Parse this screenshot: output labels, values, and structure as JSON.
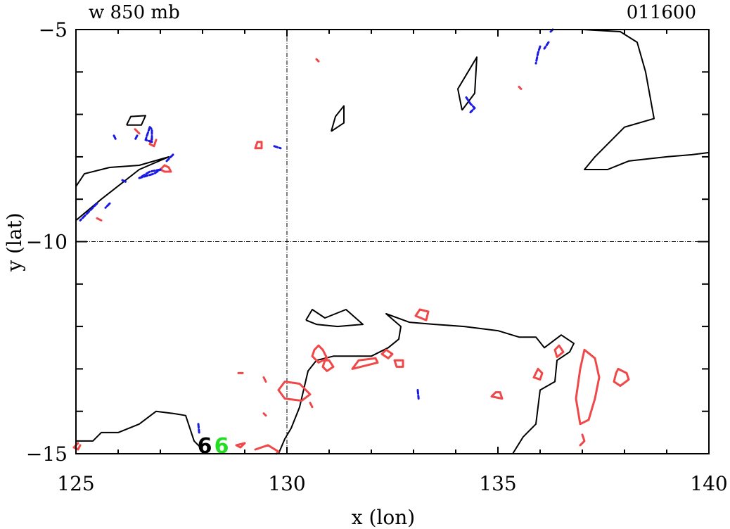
{
  "chart_data": {
    "type": "contour",
    "title_left": "w 850 mb",
    "title_right": "011600",
    "xlabel": "x (lon)",
    "ylabel": "y (lat)",
    "xlim": [
      125,
      140
    ],
    "ylim": [
      -15,
      -5
    ],
    "x_ticks": [
      125,
      130,
      135,
      140
    ],
    "x_tick_labels": [
      "125",
      "130",
      "135",
      "140"
    ],
    "y_ticks": [
      -15,
      -10,
      -5
    ],
    "y_tick_labels": [
      "−15",
      "−10",
      "−5"
    ],
    "grid": {
      "x": [
        130
      ],
      "y": [
        -10
      ],
      "style": "dash-dot"
    },
    "colors": {
      "coast": "#000000",
      "positive": "#f04848",
      "negative": "#1a1ae6",
      "marker": "#22dd22"
    },
    "coastlines": [
      [
        [
          135.8,
          -5.0
        ],
        [
          136.5,
          -5.0
        ],
        [
          137.0,
          -5.0
        ],
        [
          137.9,
          -5.05
        ],
        [
          138.3,
          -5.3
        ],
        [
          138.5,
          -6.0
        ],
        [
          138.7,
          -7.1
        ],
        [
          138.0,
          -7.3
        ],
        [
          137.3,
          -8.0
        ],
        [
          137.05,
          -8.3
        ],
        [
          137.6,
          -8.3
        ],
        [
          138.1,
          -8.1
        ],
        [
          139.0,
          -8.0
        ],
        [
          139.6,
          -7.95
        ],
        [
          140.0,
          -7.9
        ]
      ],
      [
        [
          134.15,
          -6.9
        ],
        [
          134.05,
          -6.4
        ],
        [
          134.35,
          -5.9
        ],
        [
          134.5,
          -5.65
        ],
        [
          134.45,
          -6.5
        ],
        [
          134.15,
          -6.9
        ]
      ],
      [
        [
          131.05,
          -7.4
        ],
        [
          131.15,
          -7.05
        ],
        [
          131.35,
          -6.8
        ],
        [
          131.35,
          -7.2
        ],
        [
          131.05,
          -7.4
        ]
      ],
      [
        [
          126.2,
          -7.25
        ],
        [
          126.3,
          -7.05
        ],
        [
          126.65,
          -7.03
        ],
        [
          126.55,
          -7.25
        ],
        [
          126.2,
          -7.25
        ]
      ],
      [
        [
          125.0,
          -8.7
        ],
        [
          125.2,
          -8.4
        ],
        [
          125.8,
          -8.25
        ],
        [
          126.5,
          -8.2
        ],
        [
          127.2,
          -8.0
        ],
        [
          126.5,
          -8.3
        ],
        [
          125.6,
          -9.0
        ],
        [
          125.0,
          -9.5
        ]
      ],
      [
        [
          130.45,
          -11.85
        ],
        [
          130.6,
          -11.6
        ],
        [
          130.9,
          -11.8
        ],
        [
          131.4,
          -11.6
        ],
        [
          131.8,
          -11.95
        ],
        [
          131.2,
          -12.0
        ],
        [
          130.7,
          -11.95
        ],
        [
          130.45,
          -11.85
        ]
      ],
      [
        [
          129.8,
          -15.0
        ],
        [
          129.95,
          -14.65
        ],
        [
          130.1,
          -14.4
        ],
        [
          130.3,
          -13.9
        ],
        [
          130.5,
          -13.05
        ],
        [
          130.7,
          -12.8
        ],
        [
          131.1,
          -12.7
        ],
        [
          131.6,
          -12.7
        ],
        [
          132.0,
          -12.7
        ],
        [
          132.4,
          -12.5
        ],
        [
          132.65,
          -12.3
        ],
        [
          132.7,
          -12.0
        ],
        [
          132.35,
          -11.7
        ],
        [
          132.9,
          -11.9
        ],
        [
          133.5,
          -11.95
        ],
        [
          134.2,
          -12.0
        ],
        [
          135.0,
          -12.1
        ],
        [
          135.5,
          -12.25
        ],
        [
          135.9,
          -12.25
        ],
        [
          136.1,
          -12.5
        ],
        [
          136.5,
          -12.2
        ],
        [
          136.8,
          -12.4
        ],
        [
          136.7,
          -12.6
        ],
        [
          136.4,
          -12.8
        ],
        [
          136.35,
          -13.3
        ],
        [
          136.0,
          -13.5
        ],
        [
          135.9,
          -14.3
        ],
        [
          135.6,
          -14.6
        ],
        [
          135.35,
          -15.0
        ]
      ],
      [
        [
          125.0,
          -14.7
        ],
        [
          125.4,
          -14.7
        ],
        [
          125.6,
          -14.5
        ],
        [
          126.0,
          -14.5
        ],
        [
          126.5,
          -14.3
        ],
        [
          126.9,
          -14.0
        ],
        [
          127.3,
          -14.05
        ],
        [
          127.6,
          -14.1
        ],
        [
          127.8,
          -14.7
        ],
        [
          128.0,
          -14.9
        ]
      ]
    ],
    "positive_contours": [
      [
        [
          130.85,
          -12.55
        ],
        [
          130.75,
          -12.45
        ],
        [
          130.65,
          -12.55
        ],
        [
          130.6,
          -12.7
        ],
        [
          130.75,
          -12.85
        ],
        [
          130.95,
          -12.75
        ],
        [
          130.85,
          -12.55
        ]
      ],
      [
        [
          130.9,
          -12.8
        ],
        [
          130.85,
          -12.95
        ],
        [
          130.95,
          -13.05
        ],
        [
          131.1,
          -12.95
        ],
        [
          131.0,
          -12.8
        ],
        [
          130.9,
          -12.8
        ]
      ],
      [
        [
          129.8,
          -13.5
        ],
        [
          129.95,
          -13.3
        ],
        [
          130.3,
          -13.35
        ],
        [
          130.55,
          -13.6
        ],
        [
          130.35,
          -13.75
        ],
        [
          129.95,
          -13.7
        ],
        [
          129.8,
          -13.5
        ]
      ],
      [
        [
          132.1,
          -12.75
        ],
        [
          131.7,
          -12.8
        ],
        [
          131.55,
          -13.0
        ],
        [
          131.75,
          -12.95
        ],
        [
          132.15,
          -12.85
        ],
        [
          132.1,
          -12.75
        ]
      ],
      [
        [
          132.35,
          -12.55
        ],
        [
          132.25,
          -12.65
        ],
        [
          132.4,
          -12.75
        ],
        [
          132.5,
          -12.65
        ],
        [
          132.35,
          -12.55
        ]
      ],
      [
        [
          132.55,
          -12.8
        ],
        [
          132.6,
          -12.95
        ],
        [
          132.75,
          -12.95
        ],
        [
          132.75,
          -12.8
        ],
        [
          132.55,
          -12.8
        ]
      ],
      [
        [
          133.15,
          -11.6
        ],
        [
          133.05,
          -11.75
        ],
        [
          133.3,
          -11.85
        ],
        [
          133.35,
          -11.65
        ],
        [
          133.15,
          -11.6
        ]
      ],
      [
        [
          136.45,
          -12.45
        ],
        [
          136.35,
          -12.55
        ],
        [
          136.4,
          -12.72
        ],
        [
          136.55,
          -12.6
        ],
        [
          136.45,
          -12.45
        ]
      ],
      [
        [
          135.95,
          -13.0
        ],
        [
          135.85,
          -13.2
        ],
        [
          136.0,
          -13.25
        ],
        [
          136.05,
          -13.1
        ],
        [
          135.95,
          -13.0
        ]
      ],
      [
        [
          137.05,
          -12.55
        ],
        [
          137.3,
          -12.75
        ],
        [
          137.4,
          -13.2
        ],
        [
          137.3,
          -13.7
        ],
        [
          137.15,
          -14.2
        ],
        [
          136.95,
          -14.3
        ],
        [
          136.85,
          -13.7
        ],
        [
          136.95,
          -13.0
        ],
        [
          137.05,
          -12.55
        ]
      ],
      [
        [
          137.85,
          -13.0
        ],
        [
          138.05,
          -13.1
        ],
        [
          138.1,
          -13.25
        ],
        [
          137.9,
          -13.4
        ],
        [
          137.75,
          -13.3
        ],
        [
          137.8,
          -13.1
        ],
        [
          137.85,
          -13.0
        ]
      ],
      [
        [
          134.95,
          -13.55
        ],
        [
          134.85,
          -13.65
        ],
        [
          135.1,
          -13.7
        ],
        [
          135.05,
          -13.55
        ],
        [
          134.95,
          -13.55
        ]
      ],
      [
        [
          129.25,
          -14.9
        ],
        [
          129.55,
          -14.8
        ],
        [
          129.8,
          -14.95
        ],
        [
          129.75,
          -15.0
        ]
      ],
      [
        [
          129.0,
          -14.75
        ],
        [
          128.8,
          -14.8
        ],
        [
          128.9,
          -14.85
        ],
        [
          129.0,
          -14.75
        ]
      ],
      [
        [
          125.05,
          -14.75
        ],
        [
          124.95,
          -14.85
        ],
        [
          125.05,
          -14.9
        ],
        [
          125.1,
          -14.8
        ]
      ],
      [
        [
          129.3,
          -7.65
        ],
        [
          129.25,
          -7.8
        ],
        [
          129.4,
          -7.8
        ],
        [
          129.4,
          -7.65
        ],
        [
          129.3,
          -7.65
        ]
      ],
      [
        [
          127.1,
          -8.2
        ],
        [
          127.0,
          -8.3
        ],
        [
          127.1,
          -8.35
        ],
        [
          127.25,
          -8.35
        ],
        [
          127.2,
          -8.25
        ],
        [
          127.1,
          -8.2
        ]
      ],
      [
        [
          126.8,
          -7.55
        ],
        [
          126.75,
          -7.7
        ],
        [
          126.85,
          -7.75
        ],
        [
          126.9,
          -7.6
        ]
      ],
      [
        [
          137.0,
          -14.55
        ],
        [
          137.05,
          -14.7
        ],
        [
          136.95,
          -14.8
        ]
      ],
      [
        [
          128.85,
          -13.1
        ],
        [
          128.95,
          -13.1
        ]
      ],
      [
        [
          129.45,
          -13.2
        ],
        [
          129.5,
          -13.3
        ]
      ],
      [
        [
          129.45,
          -14.05
        ],
        [
          129.5,
          -14.1
        ]
      ],
      [
        [
          130.55,
          -13.8
        ],
        [
          130.6,
          -13.9
        ]
      ],
      [
        [
          126.4,
          -7.35
        ],
        [
          126.5,
          -7.45
        ]
      ],
      [
        [
          125.5,
          -9.45
        ],
        [
          125.6,
          -9.5
        ]
      ],
      [
        [
          130.7,
          -5.7
        ],
        [
          130.75,
          -5.75
        ]
      ],
      [
        [
          135.5,
          -6.35
        ],
        [
          135.55,
          -6.4
        ]
      ]
    ],
    "negative_contours": [
      [
        [
          126.75,
          -7.3
        ],
        [
          126.65,
          -7.6
        ],
        [
          126.8,
          -7.65
        ],
        [
          126.8,
          -7.35
        ],
        [
          126.75,
          -7.3
        ]
      ],
      [
        [
          126.45,
          -7.5
        ],
        [
          126.4,
          -7.6
        ]
      ],
      [
        [
          125.9,
          -7.5
        ],
        [
          125.95,
          -7.6
        ]
      ],
      [
        [
          127.0,
          -8.3
        ],
        [
          126.75,
          -8.35
        ],
        [
          126.5,
          -8.5
        ],
        [
          126.85,
          -8.4
        ],
        [
          127.0,
          -8.3
        ]
      ],
      [
        [
          127.3,
          -7.95
        ],
        [
          127.15,
          -8.1
        ]
      ],
      [
        [
          126.1,
          -8.55
        ],
        [
          126.2,
          -8.6
        ]
      ],
      [
        [
          125.5,
          -9.1
        ],
        [
          125.3,
          -9.3
        ],
        [
          125.1,
          -9.5
        ]
      ],
      [
        [
          125.8,
          -9.1
        ],
        [
          125.7,
          -9.2
        ]
      ],
      [
        [
          129.7,
          -7.75
        ],
        [
          129.85,
          -7.8
        ]
      ],
      [
        [
          134.25,
          -6.6
        ],
        [
          134.35,
          -6.75
        ],
        [
          134.45,
          -6.85
        ],
        [
          134.35,
          -6.95
        ]
      ],
      [
        [
          136.0,
          -5.4
        ],
        [
          135.95,
          -5.55
        ],
        [
          135.9,
          -5.8
        ]
      ],
      [
        [
          136.2,
          -5.3
        ],
        [
          136.1,
          -5.45
        ]
      ],
      [
        [
          136.3,
          -5.0
        ],
        [
          136.25,
          -5.05
        ]
      ],
      [
        [
          133.1,
          -13.5
        ],
        [
          133.12,
          -13.7
        ]
      ],
      [
        [
          127.9,
          -14.3
        ],
        [
          127.92,
          -14.5
        ]
      ]
    ],
    "markers": [
      {
        "label": "6",
        "x": 128.05,
        "y": -14.95,
        "color": "#000000"
      },
      {
        "label": "6",
        "x": 128.45,
        "y": -14.95,
        "color": "#22dd22"
      }
    ]
  }
}
